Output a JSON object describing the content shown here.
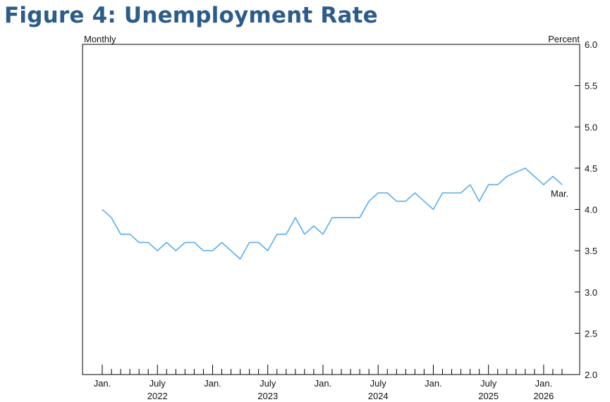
{
  "figure": {
    "title": "Figure 4: Unemployment Rate"
  },
  "colors": {
    "title": "#2b5c8a",
    "line": "#5aaeea",
    "axis": "#000000"
  },
  "chart_data": {
    "type": "line",
    "title": "Figure 4: Unemployment Rate",
    "frequency_label": "Monthly",
    "units_label": "Percent",
    "ylim": [
      2.0,
      6.0
    ],
    "yticks": [
      "2.0",
      "2.5",
      "3.0",
      "3.5",
      "4.0",
      "4.5",
      "5.0",
      "5.5",
      "6.0"
    ],
    "x_tick_labels": [
      {
        "month": "Jan.",
        "year": "",
        "date": "2022-01"
      },
      {
        "month": "July",
        "year": "2022",
        "date": "2022-07"
      },
      {
        "month": "Jan.",
        "year": "",
        "date": "2023-01"
      },
      {
        "month": "July",
        "year": "2023",
        "date": "2023-07"
      },
      {
        "month": "Jan.",
        "year": "",
        "date": "2024-01"
      },
      {
        "month": "July",
        "year": "2024",
        "date": "2024-07"
      },
      {
        "month": "Jan.",
        "year": "",
        "date": "2025-01"
      },
      {
        "month": "July",
        "year": "2025",
        "date": "2025-07"
      },
      {
        "month": "Jan.",
        "year": "2026",
        "date": "2026-01"
      }
    ],
    "end_label": "Mar.",
    "grid": false,
    "series": [
      {
        "x": [
          "2022-01",
          "2022-02",
          "2022-03",
          "2022-04",
          "2022-05",
          "2022-06",
          "2022-07",
          "2022-08",
          "2022-09",
          "2022-10",
          "2022-11",
          "2022-12",
          "2023-01",
          "2023-02",
          "2023-03",
          "2023-04",
          "2023-05",
          "2023-06",
          "2023-07",
          "2023-08",
          "2023-09",
          "2023-10",
          "2023-11",
          "2023-12",
          "2024-01",
          "2024-02",
          "2024-03",
          "2024-04",
          "2024-05",
          "2024-06",
          "2024-07",
          "2024-08",
          "2024-09",
          "2024-10",
          "2024-11",
          "2024-12",
          "2025-01",
          "2025-02",
          "2025-03",
          "2025-04",
          "2025-05",
          "2025-06",
          "2025-07",
          "2025-08",
          "2025-09",
          "2025-10",
          "2025-11",
          "2025-12",
          "2026-01",
          "2026-02",
          "2026-03"
        ],
        "values": [
          4.0,
          3.9,
          3.7,
          3.7,
          3.6,
          3.6,
          3.5,
          3.6,
          3.5,
          3.6,
          3.6,
          3.5,
          3.5,
          3.6,
          3.5,
          3.4,
          3.6,
          3.6,
          3.5,
          3.7,
          3.7,
          3.9,
          3.7,
          3.8,
          3.7,
          3.9,
          3.9,
          3.9,
          3.9,
          4.1,
          4.2,
          4.2,
          4.1,
          4.1,
          4.2,
          4.1,
          4.0,
          4.2,
          4.2,
          4.2,
          4.3,
          4.1,
          4.3,
          4.3,
          4.4,
          4.45,
          4.5,
          4.4,
          4.3,
          4.4,
          4.3
        ]
      }
    ]
  }
}
